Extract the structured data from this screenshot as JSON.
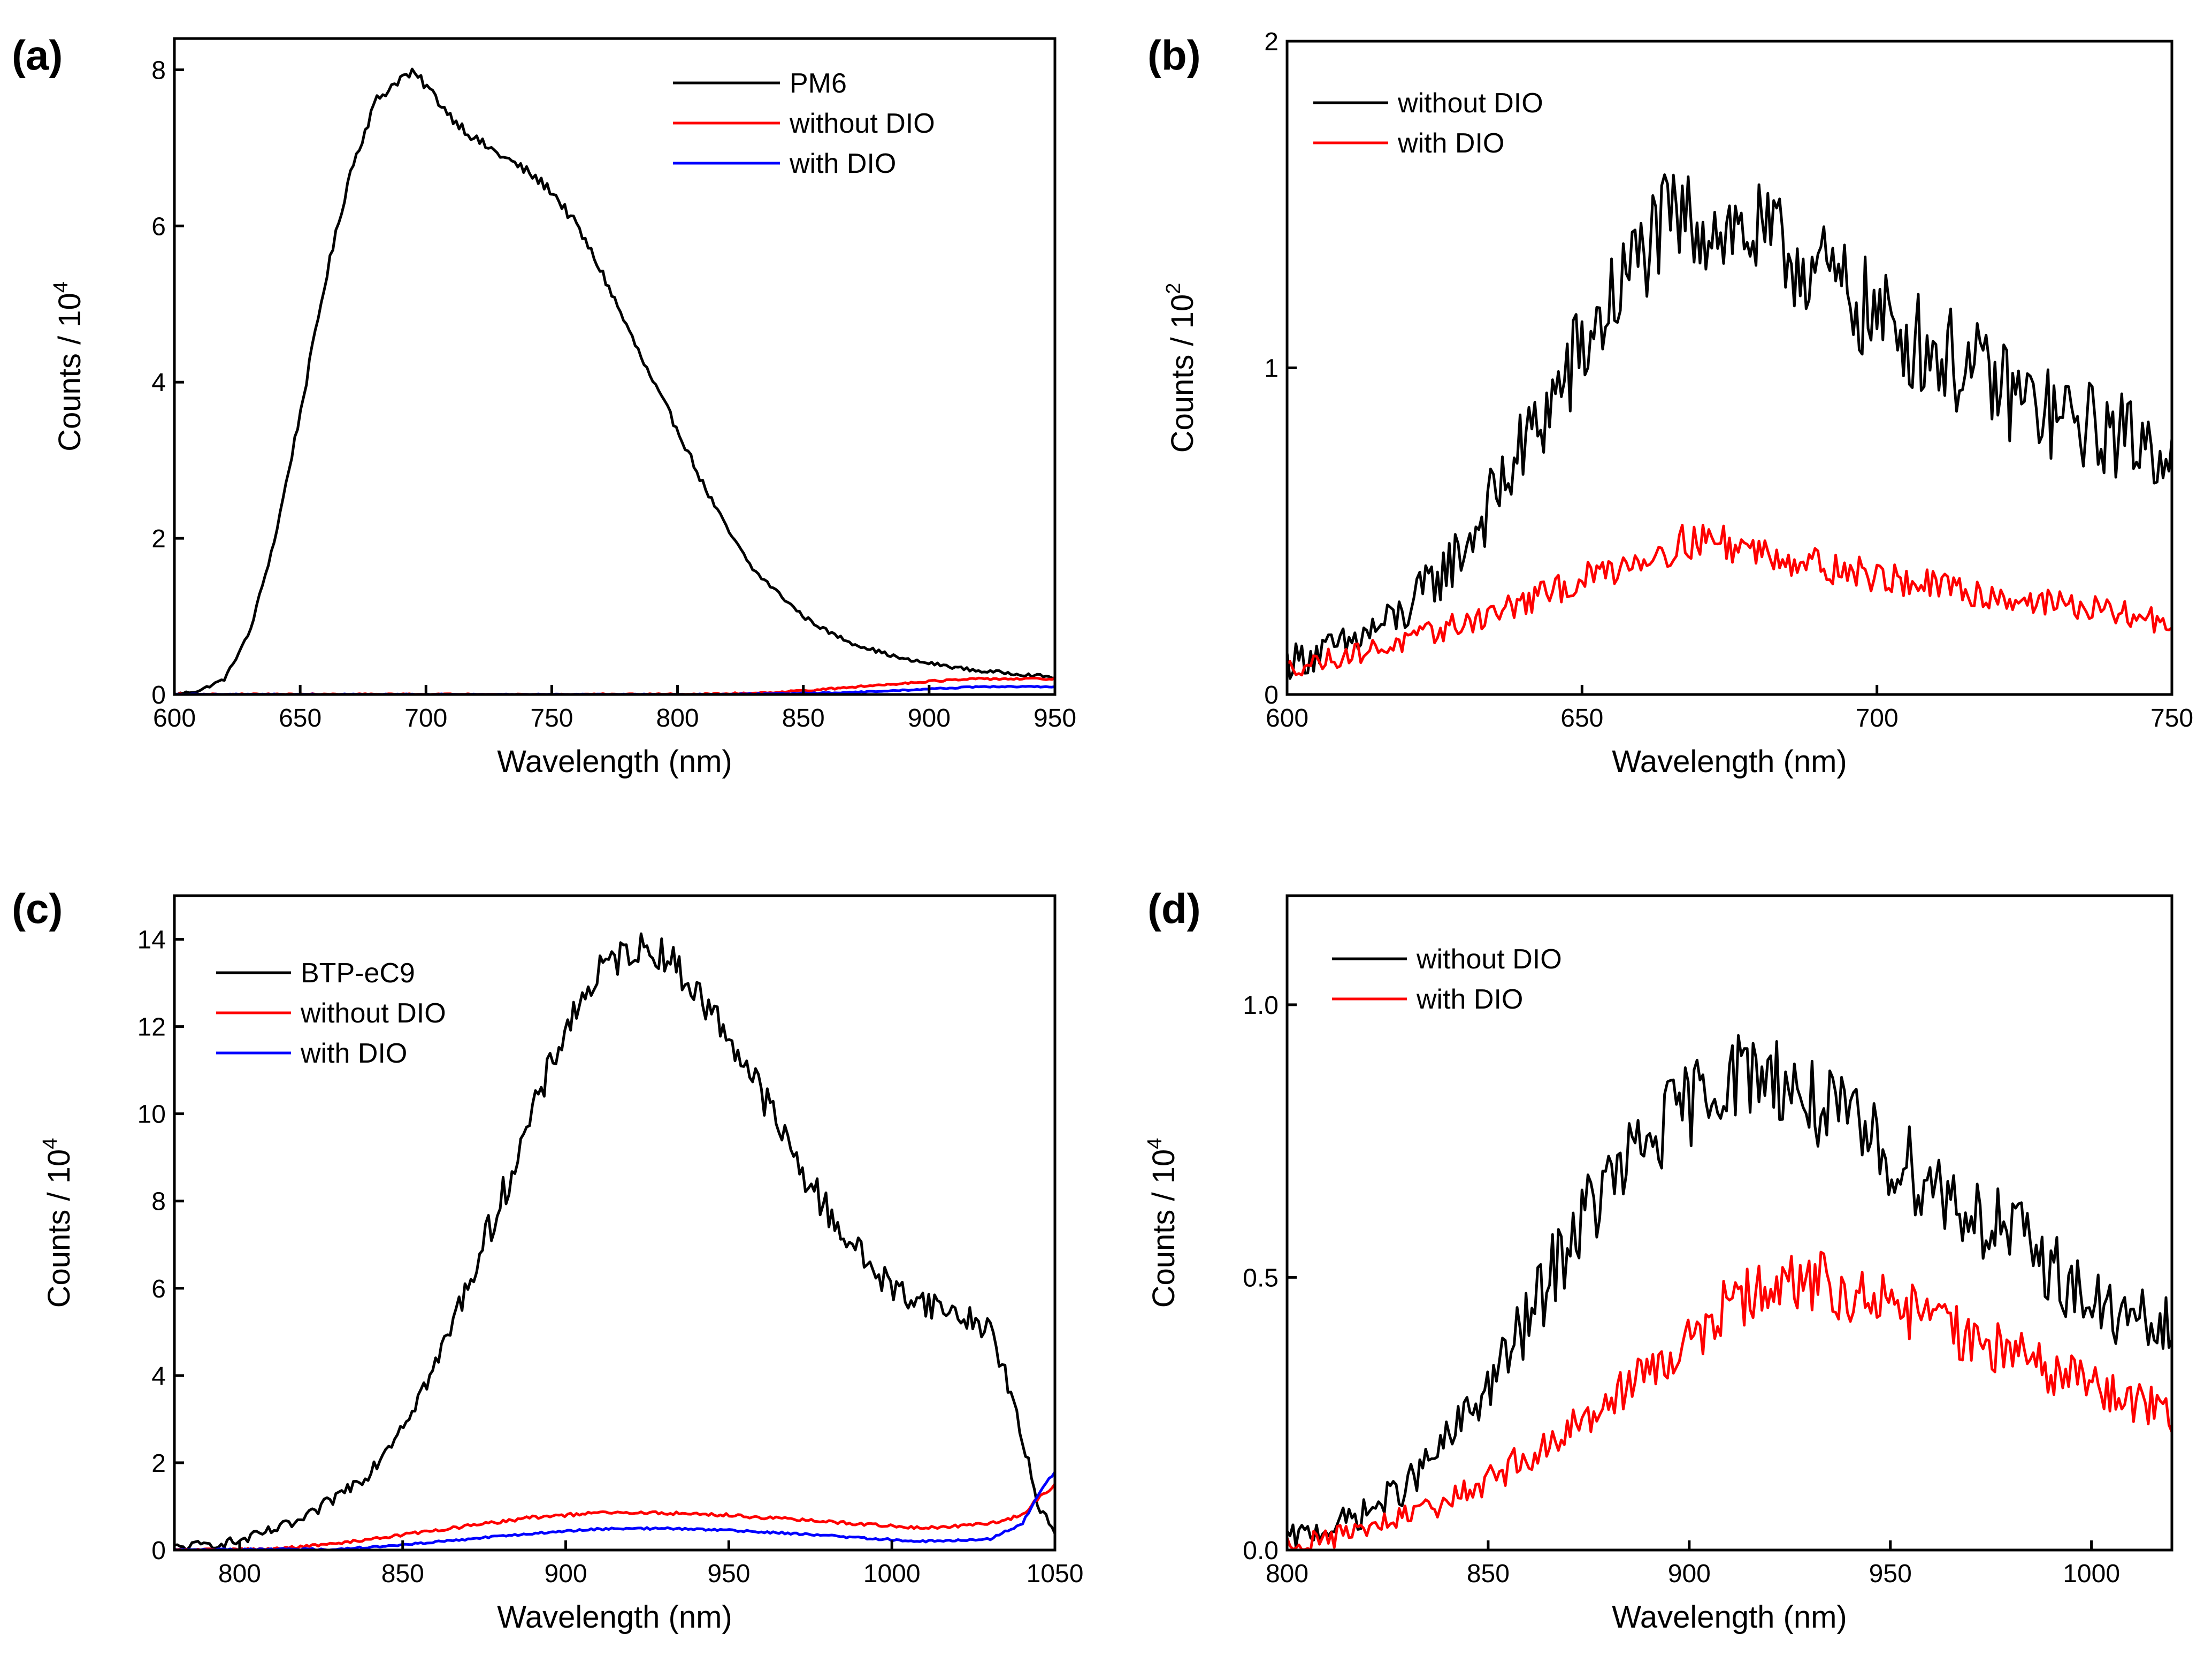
{
  "chart_data": [
    {
      "panel_label": "(a)",
      "type": "line",
      "xlabel": "Wavelength (nm)",
      "ylabel": "Counts / 10",
      "ylabel_exp": "4",
      "xlim": [
        600,
        950
      ],
      "ylim": [
        0,
        8.4
      ],
      "xticks": [
        600,
        650,
        700,
        750,
        800,
        850,
        900,
        950
      ],
      "xtick_labels": [
        "600",
        "650",
        "700",
        "750",
        "800",
        "850",
        "900",
        "950"
      ],
      "yticks": [
        0,
        2,
        4,
        6,
        8
      ],
      "ytick_labels": [
        "0",
        "2",
        "4",
        "6",
        "8"
      ],
      "legend": [
        "PM6",
        "without DIO",
        "with DIO"
      ],
      "legend_position": "top-right",
      "series": [
        {
          "name": "PM6",
          "color": "#000000",
          "noise": 0.05,
          "x": [
            600,
            610,
            620,
            630,
            640,
            650,
            660,
            670,
            680,
            690,
            695,
            700,
            710,
            720,
            730,
            740,
            750,
            760,
            770,
            780,
            790,
            800,
            810,
            820,
            830,
            840,
            850,
            860,
            870,
            880,
            890,
            900,
            910,
            920,
            930,
            940,
            950
          ],
          "y": [
            0.0,
            0.05,
            0.2,
            0.8,
            2.0,
            3.6,
            5.3,
            6.7,
            7.6,
            7.9,
            7.95,
            7.8,
            7.4,
            7.1,
            6.9,
            6.7,
            6.45,
            6.0,
            5.4,
            4.7,
            4.0,
            3.4,
            2.7,
            2.1,
            1.6,
            1.3,
            1.0,
            0.8,
            0.65,
            0.55,
            0.45,
            0.4,
            0.35,
            0.3,
            0.28,
            0.25,
            0.22
          ]
        },
        {
          "name": "without DIO",
          "color": "#ff0000",
          "noise": 0.03,
          "x": [
            600,
            800,
            820,
            840,
            860,
            880,
            900,
            920,
            940,
            950
          ],
          "y": [
            0,
            0,
            0.01,
            0.03,
            0.07,
            0.12,
            0.17,
            0.2,
            0.2,
            0.2
          ]
        },
        {
          "name": "with DIO",
          "color": "#0000ff",
          "noise": 0.02,
          "x": [
            600,
            820,
            840,
            860,
            880,
            900,
            920,
            940,
            950
          ],
          "y": [
            0,
            0,
            0.01,
            0.02,
            0.04,
            0.07,
            0.1,
            0.1,
            0.1
          ]
        }
      ]
    },
    {
      "panel_label": "(b)",
      "type": "line",
      "xlabel": "Wavelength (nm)",
      "ylabel": "Counts / 10",
      "ylabel_exp": "2",
      "xlim": [
        600,
        750
      ],
      "ylim": [
        0,
        2
      ],
      "xticks": [
        600,
        650,
        700,
        750
      ],
      "xtick_labels": [
        "600",
        "650",
        "700",
        "750"
      ],
      "yticks": [
        0,
        1,
        2
      ],
      "ytick_labels": [
        "0",
        "1",
        "2"
      ],
      "legend": [
        "without DIO",
        "with DIO"
      ],
      "legend_position": "top-left",
      "series": [
        {
          "name": "without DIO",
          "color": "#000000",
          "noise": 0.12,
          "x": [
            600,
            610,
            620,
            630,
            640,
            650,
            660,
            665,
            670,
            680,
            690,
            700,
            710,
            720,
            730,
            740,
            750
          ],
          "y": [
            0.1,
            0.15,
            0.25,
            0.45,
            0.75,
            1.05,
            1.35,
            1.45,
            1.45,
            1.4,
            1.3,
            1.15,
            1.05,
            0.95,
            0.85,
            0.8,
            0.75
          ]
        },
        {
          "name": "with DIO",
          "color": "#ff0000",
          "noise": 0.07,
          "x": [
            600,
            610,
            620,
            630,
            640,
            650,
            660,
            670,
            680,
            690,
            700,
            710,
            720,
            730,
            740,
            750
          ],
          "y": [
            0.08,
            0.12,
            0.16,
            0.22,
            0.28,
            0.35,
            0.42,
            0.48,
            0.44,
            0.4,
            0.36,
            0.33,
            0.3,
            0.28,
            0.25,
            0.22
          ]
        }
      ]
    },
    {
      "panel_label": "(c)",
      "type": "line",
      "xlabel": "Wavelength (nm)",
      "ylabel": "Counts / 10",
      "ylabel_exp": "4",
      "xlim": [
        780,
        1050
      ],
      "ylim": [
        0,
        15
      ],
      "xticks": [
        800,
        850,
        900,
        950,
        1000,
        1050
      ],
      "xtick_labels": [
        "800",
        "850",
        "900",
        "950",
        "1000",
        "1050"
      ],
      "yticks": [
        0,
        2,
        4,
        6,
        8,
        10,
        12,
        14
      ],
      "ytick_labels": [
        "0",
        "2",
        "4",
        "6",
        "8",
        "10",
        "12",
        "14"
      ],
      "legend": [
        "BTP-eC9",
        "without DIO",
        "with DIO"
      ],
      "legend_position": "top-left",
      "series": [
        {
          "name": "BTP-eC9",
          "color": "#000000",
          "noise": 0.3,
          "x": [
            780,
            800,
            820,
            840,
            850,
            860,
            880,
            900,
            910,
            920,
            930,
            940,
            950,
            960,
            970,
            980,
            990,
            1000,
            1010,
            1020,
            1030,
            1035,
            1040,
            1045,
            1050
          ],
          "y": [
            0.05,
            0.2,
            0.7,
            1.8,
            2.9,
            4.2,
            8.0,
            12.0,
            13.2,
            13.8,
            13.7,
            12.8,
            11.8,
            10.5,
            9.0,
            7.8,
            6.8,
            6.0,
            5.7,
            5.4,
            5.1,
            4.0,
            2.5,
            1.0,
            0.5
          ]
        },
        {
          "name": "without DIO",
          "color": "#ff0000",
          "noise": 0.08,
          "x": [
            780,
            810,
            830,
            850,
            870,
            890,
            910,
            930,
            950,
            970,
            990,
            1010,
            1030,
            1040,
            1045,
            1050
          ],
          "y": [
            0,
            0.02,
            0.15,
            0.35,
            0.55,
            0.75,
            0.85,
            0.85,
            0.8,
            0.7,
            0.6,
            0.5,
            0.6,
            0.8,
            1.2,
            1.5
          ]
        },
        {
          "name": "with DIO",
          "color": "#0000ff",
          "noise": 0.06,
          "x": [
            780,
            830,
            850,
            870,
            890,
            910,
            930,
            950,
            970,
            990,
            1010,
            1030,
            1040,
            1045,
            1050
          ],
          "y": [
            0,
            0.02,
            0.12,
            0.25,
            0.38,
            0.48,
            0.5,
            0.45,
            0.38,
            0.28,
            0.2,
            0.25,
            0.6,
            1.3,
            1.8
          ]
        }
      ]
    },
    {
      "panel_label": "(d)",
      "type": "line",
      "xlabel": "Wavelength (nm)",
      "ylabel": "Counts / 10",
      "ylabel_exp": "4",
      "xlim": [
        800,
        1020
      ],
      "ylim": [
        0,
        1.2
      ],
      "xticks": [
        800,
        850,
        900,
        950,
        1000
      ],
      "xtick_labels": [
        "800",
        "850",
        "900",
        "950",
        "1000"
      ],
      "yticks": [
        0,
        0.5,
        1.0
      ],
      "ytick_labels": [
        "0.0",
        "0.5",
        "1.0"
      ],
      "legend": [
        "without DIO",
        "with DIO"
      ],
      "legend_position": "top-left",
      "series": [
        {
          "name": "without DIO",
          "color": "#000000",
          "noise": 0.06,
          "x": [
            800,
            810,
            820,
            830,
            840,
            850,
            860,
            870,
            880,
            890,
            900,
            910,
            920,
            930,
            940,
            950,
            960,
            970,
            980,
            990,
            1000,
            1010,
            1020
          ],
          "y": [
            0.02,
            0.04,
            0.07,
            0.12,
            0.2,
            0.3,
            0.42,
            0.57,
            0.67,
            0.75,
            0.82,
            0.87,
            0.88,
            0.82,
            0.78,
            0.72,
            0.68,
            0.62,
            0.58,
            0.52,
            0.45,
            0.42,
            0.4
          ]
        },
        {
          "name": "with DIO",
          "color": "#ff0000",
          "noise": 0.05,
          "x": [
            800,
            810,
            820,
            830,
            840,
            850,
            860,
            870,
            880,
            890,
            900,
            910,
            920,
            930,
            940,
            950,
            960,
            970,
            980,
            990,
            1000,
            1010,
            1020
          ],
          "y": [
            0.01,
            0.02,
            0.04,
            0.06,
            0.09,
            0.13,
            0.17,
            0.22,
            0.28,
            0.33,
            0.38,
            0.45,
            0.48,
            0.5,
            0.47,
            0.45,
            0.42,
            0.39,
            0.36,
            0.33,
            0.3,
            0.27,
            0.25
          ]
        }
      ]
    }
  ]
}
